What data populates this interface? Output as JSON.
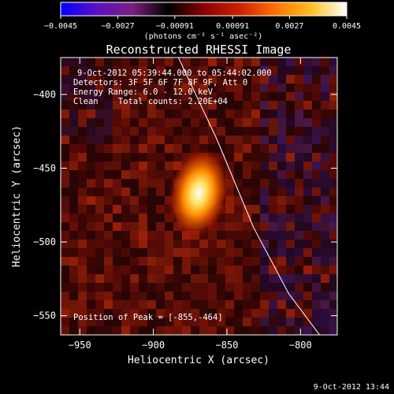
{
  "chart_data": {
    "type": "heatmap",
    "title": "Reconstructed RHESSI Image",
    "xlabel": "Heliocentric X (arcsec)",
    "ylabel": "Heliocentric Y (arcsec)",
    "xlim": [
      -963,
      -775
    ],
    "ylim": [
      -563,
      -375
    ],
    "x_ticks": [
      -950,
      -900,
      -850,
      -800
    ],
    "y_ticks": [
      -550,
      -500,
      -450,
      -400
    ],
    "x_tick_labels": [
      "−950",
      "−900",
      "−850",
      "−800"
    ],
    "y_tick_labels": [
      "−550",
      "−500",
      "−450",
      "−400"
    ],
    "colorbar": {
      "range": [
        -0.0045,
        0.0045
      ],
      "ticks": [
        -0.0045,
        -0.0027,
        -0.00091,
        0.00091,
        0.0027,
        0.0045
      ],
      "tick_labels": [
        "−0.0045",
        "−0.0027",
        "−0.00091",
        "0.00091",
        "0.0027",
        "0.0045"
      ],
      "units": "(photons cm⁻² s⁻¹ asec⁻²)",
      "colormap": [
        "#0000ff",
        "#5a10c0",
        "#7a2080",
        "#000000",
        "#8a0000",
        "#cc2000",
        "#ff7000",
        "#ffc020",
        "#ffffff"
      ]
    },
    "annotations": {
      "time_range": "9-Oct-2012 05:39:44.000 to 05:44:02.000",
      "detectors": "Detectors: 3F 5F 6F 7F 8F 9F, Att 0",
      "energy": "Energy Range: 6.0 - 12.0 keV",
      "clean": "Clean    Total counts: 2.20E+04",
      "peak_label": "Position of Peak = [-855,-464]"
    },
    "peak": [
      -855,
      -464
    ],
    "limb_line": [
      [
        -883,
        -375
      ],
      [
        -857,
        -430
      ],
      [
        -832,
        -490
      ],
      [
        -808,
        -535
      ],
      [
        -787,
        -563
      ]
    ]
  },
  "footer": {
    "timestamp": "9-Oct-2012 13:44"
  }
}
